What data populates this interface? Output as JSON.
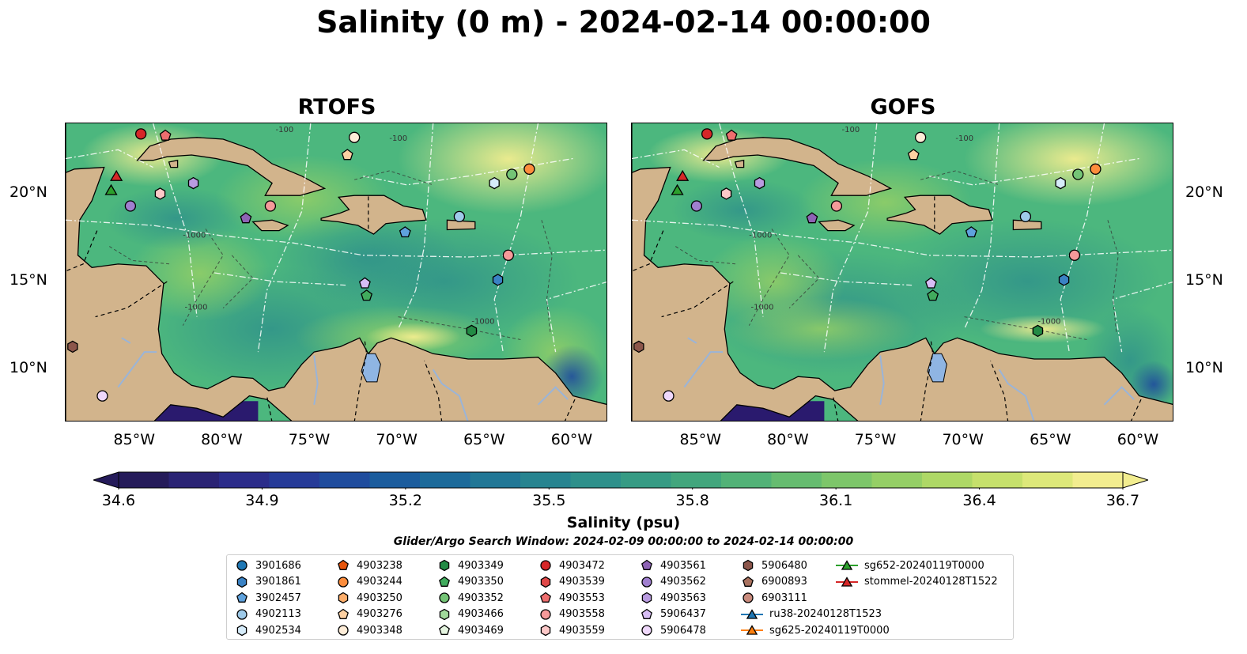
{
  "title": "Salinity (0 m) - 2024-02-14 00:00:00",
  "panels": [
    {
      "id": "rtofs",
      "title": "RTOFS"
    },
    {
      "id": "gofs",
      "title": "GOFS"
    }
  ],
  "map": {
    "lon_range": [
      -89,
      -58
    ],
    "lat_range": [
      7,
      24
    ],
    "lon_ticks": [
      "85°W",
      "80°W",
      "75°W",
      "70°W",
      "65°W",
      "60°W"
    ],
    "lon_tick_values": [
      -85,
      -80,
      -75,
      -70,
      -65,
      -60
    ],
    "lat_ticks": [
      "20°N",
      "15°N",
      "10°N"
    ],
    "lat_tick_values": [
      20,
      15,
      10
    ],
    "contour_labels": [
      "-100",
      "-1000",
      "-1000",
      "-1000",
      "-100"
    ],
    "land_color": "#d2b48c",
    "water_fill_color": "#4cb77e",
    "pacific_color": "#2a1a6e",
    "lake_color": "#8fb5e3"
  },
  "colorbar": {
    "title": "Salinity (psu)",
    "min": 34.6,
    "max": 36.7,
    "tick_labels": [
      "34.6",
      "34.9",
      "35.2",
      "35.5",
      "35.8",
      "36.1",
      "36.4",
      "36.7"
    ],
    "tick_values": [
      34.6,
      34.9,
      35.2,
      35.5,
      35.8,
      36.1,
      36.4,
      36.7
    ],
    "colors": [
      "#251b5a",
      "#2a2374",
      "#2b2c8a",
      "#263b98",
      "#1f4c9d",
      "#1b5c9d",
      "#1c6a9a",
      "#217796",
      "#278490",
      "#2e908b",
      "#369b84",
      "#42a67d",
      "#52b277",
      "#66bc70",
      "#7dc66a",
      "#95cf66",
      "#aed866",
      "#c6e06c",
      "#dde87a",
      "#f2ed8f"
    ]
  },
  "search_window": "Glider/Argo Search Window: 2024-02-09 00:00:00 to 2024-02-14 00:00:00",
  "legend": [
    {
      "label": "3901686",
      "marker": "circle",
      "color": "#1f77b4"
    },
    {
      "label": "3901861",
      "marker": "hexagon",
      "color": "#3a82c4"
    },
    {
      "label": "3902457",
      "marker": "pentagon",
      "color": "#5fa2dd"
    },
    {
      "label": "4902113",
      "marker": "circle",
      "color": "#9ecae9"
    },
    {
      "label": "4902534",
      "marker": "hexagon",
      "color": "#d6ecfa"
    },
    {
      "label": "4903238",
      "marker": "pentagon",
      "color": "#e6550d"
    },
    {
      "label": "4903244",
      "marker": "circle",
      "color": "#fd8d3c"
    },
    {
      "label": "4903250",
      "marker": "hexagon",
      "color": "#fdae6b"
    },
    {
      "label": "4903276",
      "marker": "pentagon",
      "color": "#fdd0a2"
    },
    {
      "label": "4903348",
      "marker": "circle",
      "color": "#feedd8"
    },
    {
      "label": "4903349",
      "marker": "hexagon",
      "color": "#238b45"
    },
    {
      "label": "4903350",
      "marker": "pentagon",
      "color": "#41ab5d"
    },
    {
      "label": "4903352",
      "marker": "circle",
      "color": "#74c476"
    },
    {
      "label": "4903466",
      "marker": "hexagon",
      "color": "#a1d99b"
    },
    {
      "label": "4903469",
      "marker": "pentagon",
      "color": "#e5f5e0"
    },
    {
      "label": "4903472",
      "marker": "circle",
      "color": "#d62728"
    },
    {
      "label": "4903539",
      "marker": "hexagon",
      "color": "#e04848"
    },
    {
      "label": "4903553",
      "marker": "pentagon",
      "color": "#ee6e6e"
    },
    {
      "label": "4903558",
      "marker": "circle",
      "color": "#f59a9a"
    },
    {
      "label": "4903559",
      "marker": "hexagon",
      "color": "#fcc8c8"
    },
    {
      "label": "4903561",
      "marker": "pentagon",
      "color": "#8e63b5"
    },
    {
      "label": "4903562",
      "marker": "circle",
      "color": "#a07fcf"
    },
    {
      "label": "4903563",
      "marker": "hexagon",
      "color": "#b99be0"
    },
    {
      "label": "5906437",
      "marker": "pentagon",
      "color": "#d7bdf5"
    },
    {
      "label": "5906478",
      "marker": "circle",
      "color": "#efd8fb"
    },
    {
      "label": "5906480",
      "marker": "hexagon",
      "color": "#8c564b"
    },
    {
      "label": "6900893",
      "marker": "pentagon",
      "color": "#a9725f"
    },
    {
      "label": "6903111",
      "marker": "circle",
      "color": "#c98b7d"
    },
    {
      "label": "ru38-20240128T1523",
      "marker": "triangle-line",
      "color": "#1f77b4"
    },
    {
      "label": "sg625-20240119T0000",
      "marker": "triangle-line",
      "color": "#ff7f0e"
    },
    {
      "label": "sg652-20240119T0000",
      "marker": "triangle-line",
      "color": "#2ca02c"
    },
    {
      "label": "stommel-20240128T1522",
      "marker": "triangle-line",
      "color": "#d62728"
    }
  ],
  "floats": [
    {
      "label": "4903472",
      "lon": -84.7,
      "lat": 23.4
    },
    {
      "label": "4903553",
      "lon": -83.3,
      "lat": 23.3
    },
    {
      "label": "4903348",
      "lon": -72.5,
      "lat": 23.2
    },
    {
      "label": "4903276",
      "lon": -72.9,
      "lat": 22.2
    },
    {
      "label": "4903244",
      "lon": -62.5,
      "lat": 21.4
    },
    {
      "label": "4903352",
      "lon": -63.5,
      "lat": 21.1
    },
    {
      "label": "4902534",
      "lon": -64.5,
      "lat": 20.6
    },
    {
      "label": "4903563",
      "lon": -81.7,
      "lat": 20.6
    },
    {
      "label": "4903559",
      "lon": -83.6,
      "lat": 20.0
    },
    {
      "label": "4903562",
      "lon": -85.3,
      "lat": 19.3
    },
    {
      "label": "4903558",
      "lon": -77.3,
      "lat": 19.3
    },
    {
      "label": "4903561",
      "lon": -78.7,
      "lat": 18.6
    },
    {
      "label": "4902113",
      "lon": -66.5,
      "lat": 18.7
    },
    {
      "label": "3902457",
      "lon": -69.6,
      "lat": 17.8
    },
    {
      "label": "4903558",
      "lon": -63.7,
      "lat": 16.5
    },
    {
      "label": "3901861",
      "lon": -64.3,
      "lat": 15.1
    },
    {
      "label": "5906437",
      "lon": -71.9,
      "lat": 14.9
    },
    {
      "label": "4903350",
      "lon": -71.8,
      "lat": 14.2
    },
    {
      "label": "4903349",
      "lon": -65.8,
      "lat": 12.2
    },
    {
      "label": "5906480",
      "lon": -88.6,
      "lat": 11.3
    },
    {
      "label": "5906478",
      "lon": -86.9,
      "lat": 8.5
    }
  ],
  "gliders": [
    {
      "label": "stommel-20240128T1522",
      "lon": -86.1,
      "lat": 21.0
    },
    {
      "label": "sg652-20240119T0000",
      "lon": -86.4,
      "lat": 20.2
    }
  ]
}
